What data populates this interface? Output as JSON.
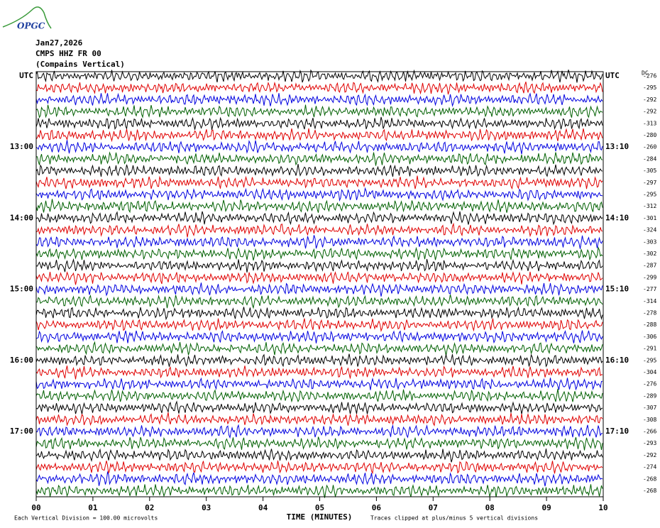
{
  "header": {
    "logo": "OPGC",
    "date": "Jan27,2026",
    "station": "CMPS HHZ FR 00",
    "site": "(Compains Vertical)",
    "dc_label": "DC"
  },
  "chart_data": {
    "type": "helicorder",
    "trace_colors": [
      "#000000",
      "#e00000",
      "#0000e0",
      "#006000"
    ],
    "left_labels": [
      "UTC",
      null,
      null,
      null,
      null,
      null,
      "13:00",
      null,
      null,
      null,
      null,
      null,
      "14:00",
      null,
      null,
      null,
      null,
      null,
      "15:00",
      null,
      null,
      null,
      null,
      null,
      "16:00",
      null,
      null,
      null,
      null,
      null,
      "17:00",
      null,
      null,
      null,
      null,
      null
    ],
    "right_labels": [
      "UTC",
      null,
      null,
      null,
      null,
      null,
      "13:10",
      null,
      null,
      null,
      null,
      null,
      "14:10",
      null,
      null,
      null,
      null,
      null,
      "15:10",
      null,
      null,
      null,
      null,
      null,
      "16:10",
      null,
      null,
      null,
      null,
      null,
      "17:10",
      null,
      null,
      null,
      null,
      null
    ],
    "dc_offsets": [
      -276,
      -295,
      -292,
      -292,
      -313,
      -280,
      -260,
      -284,
      -305,
      -297,
      -295,
      -312,
      -301,
      -324,
      -303,
      -302,
      -287,
      -299,
      -277,
      -314,
      -278,
      -288,
      -306,
      -291,
      -295,
      -304,
      -276,
      -289,
      -307,
      -308,
      -266,
      -293,
      -292,
      -274,
      -268,
      -268
    ],
    "xlim": [
      0,
      10
    ],
    "xticks": [
      {
        "value": 0,
        "label": "00"
      },
      {
        "value": 1,
        "label": "01"
      },
      {
        "value": 2,
        "label": "02"
      },
      {
        "value": 3,
        "label": "03"
      },
      {
        "value": 4,
        "label": "04"
      },
      {
        "value": 5,
        "label": "05"
      },
      {
        "value": 6,
        "label": "06"
      },
      {
        "value": 7,
        "label": "07"
      },
      {
        "value": 8,
        "label": "08"
      },
      {
        "value": 9,
        "label": "09"
      },
      {
        "value": 10,
        "label": "10"
      }
    ],
    "xlabel": "TIME (MINUTES)",
    "scale_note": "Each Vertical Division =  100.00 microvolts",
    "clip_note": "Traces clipped at plus/minus 5 vertical divisions"
  }
}
